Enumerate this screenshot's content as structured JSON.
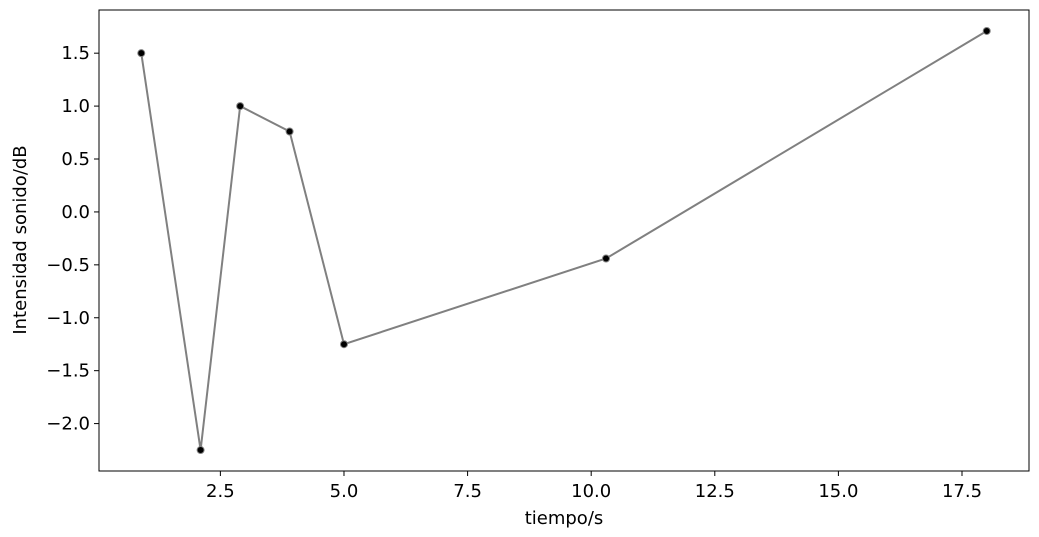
{
  "chart_data": {
    "type": "line",
    "x_label": "tiempo/s",
    "y_label": "Intensidad sonido/dB",
    "x": [
      0.9,
      2.1,
      2.9,
      3.9,
      5.0,
      10.3,
      18.0
    ],
    "values": [
      1.5,
      -2.25,
      1.0,
      0.76,
      -1.25,
      -0.44,
      1.71
    ],
    "color": "#808080",
    "marker_color": "#000000",
    "xlim": [
      0.045,
      18.855
    ],
    "ylim": [
      -2.448,
      1.908
    ],
    "xticks": [
      2.5,
      {
        "value": 5,
        "label": "5.0"
      },
      7.5,
      {
        "value": 10,
        "label": "10.0"
      },
      12.5,
      {
        "value": 15,
        "label": "15.0"
      },
      17.5
    ],
    "yticks": [
      {
        "value": -2,
        "label": "−2.0"
      },
      {
        "value": -1.5,
        "label": "−1.5"
      },
      {
        "value": -1,
        "label": "−1.0"
      },
      {
        "value": -0.5,
        "label": "−0.5"
      },
      {
        "value": 0,
        "label": "0.0"
      },
      0.5,
      {
        "value": 1,
        "label": "1.0"
      },
      1.5
    ]
  }
}
